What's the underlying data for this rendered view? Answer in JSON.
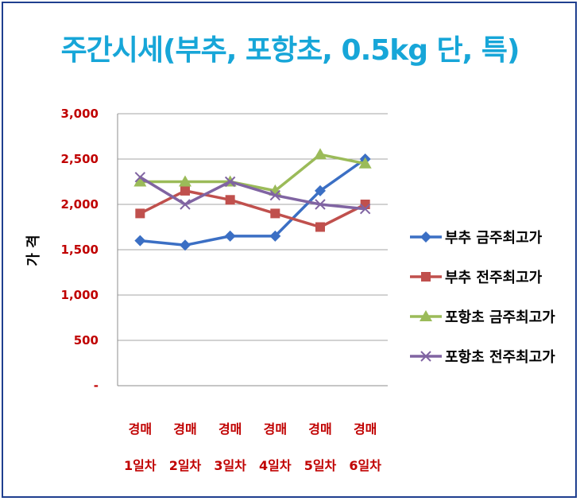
{
  "chart_data": {
    "type": "line",
    "title": "주간시세(부추, 포항초, 0.5kg 단, 특)",
    "ylabel": "가 격",
    "xlabel": "",
    "categories": [
      [
        "경매",
        "1일차"
      ],
      [
        "경매",
        "2일차"
      ],
      [
        "경매",
        "3일차"
      ],
      [
        "경매",
        "4일차"
      ],
      [
        "경매",
        "5일차"
      ],
      [
        "경매",
        "6일차"
      ]
    ],
    "ylim": [
      0,
      3000
    ],
    "yticks": [
      0,
      500,
      1000,
      1500,
      2000,
      2500,
      3000
    ],
    "ytick_labels": [
      "-",
      "500",
      "1,000",
      "1,500",
      "2,000",
      "2,500",
      "3,000"
    ],
    "grid": "horizontal",
    "legend_position": "right",
    "series": [
      {
        "name": "부추 금주최고가",
        "color": "#3b6fc4",
        "marker": "diamond",
        "values": [
          1600,
          1550,
          1650,
          1650,
          2150,
          2500
        ]
      },
      {
        "name": "부추 전주최고가",
        "color": "#c0504d",
        "marker": "square",
        "values": [
          1900,
          2150,
          2050,
          1900,
          1750,
          2000
        ]
      },
      {
        "name": "포항초 금주최고가",
        "color": "#9bbb59",
        "marker": "triangle",
        "values": [
          2250,
          2250,
          2250,
          2150,
          2550,
          2450
        ]
      },
      {
        "name": "포항초 전주최고가",
        "color": "#8064a2",
        "marker": "x",
        "values": [
          2300,
          2000,
          2250,
          2100,
          2000,
          1950
        ]
      }
    ]
  }
}
